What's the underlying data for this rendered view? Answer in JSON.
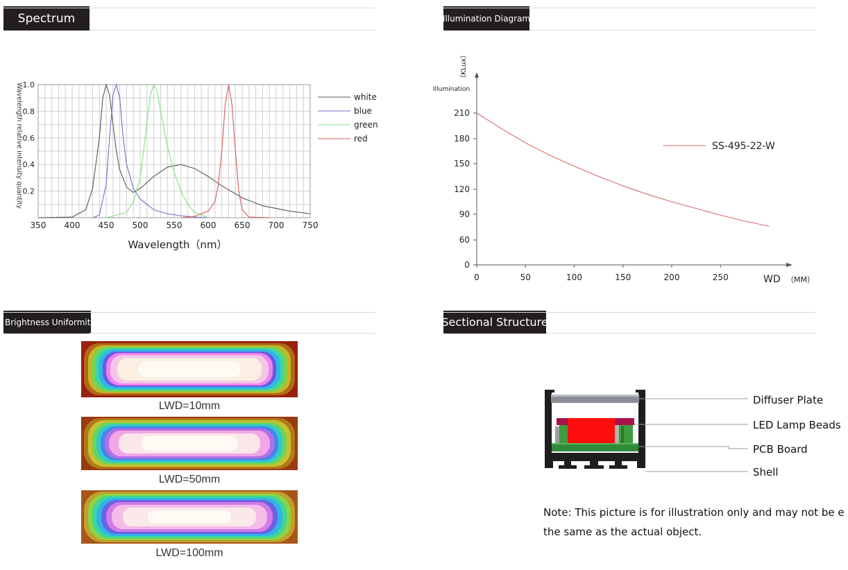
{
  "sections": {
    "spectrum": "Spectrum",
    "illumination": "Illumination Diagram",
    "brightness": "Brightness Uniformity",
    "sectional": "Sectional Structure"
  },
  "chart_data": [
    {
      "type": "line",
      "title": "Spectrum",
      "xlabel": "Wavelength（nm）",
      "ylabel": "Wavelength relative intensity quantity",
      "xlim": [
        350,
        750
      ],
      "ylim": [
        0,
        1.0
      ],
      "x_ticks": [
        "350",
        "400",
        "450",
        "500",
        "550",
        "600",
        "650",
        "700",
        "750"
      ],
      "y_ticks": [
        "1.0",
        "0.8",
        "0.6",
        "0.4",
        "0.2"
      ],
      "grid": true,
      "legend_position": "right",
      "series": [
        {
          "name": "white",
          "color": "#555555",
          "x": [
            350,
            400,
            420,
            430,
            440,
            445,
            450,
            455,
            460,
            465,
            470,
            480,
            490,
            500,
            520,
            540,
            560,
            580,
            600,
            620,
            650,
            680,
            720,
            750
          ],
          "y": [
            0,
            0.005,
            0.06,
            0.22,
            0.6,
            0.9,
            1.0,
            0.92,
            0.7,
            0.5,
            0.36,
            0.23,
            0.19,
            0.22,
            0.31,
            0.38,
            0.4,
            0.37,
            0.31,
            0.24,
            0.15,
            0.09,
            0.05,
            0.03
          ]
        },
        {
          "name": "blue",
          "color": "#6f6fc6",
          "x": [
            430,
            440,
            450,
            455,
            460,
            465,
            470,
            475,
            480,
            490,
            500,
            520,
            540,
            560,
            580,
            600
          ],
          "y": [
            0,
            0.02,
            0.25,
            0.6,
            0.92,
            1.0,
            0.9,
            0.6,
            0.4,
            0.22,
            0.14,
            0.06,
            0.03,
            0.015,
            0.005,
            0
          ]
        },
        {
          "name": "green",
          "color": "#84e084",
          "x": [
            450,
            480,
            490,
            500,
            505,
            510,
            515,
            520,
            525,
            530,
            540,
            550,
            560,
            570,
            580,
            600
          ],
          "y": [
            0,
            0.04,
            0.12,
            0.3,
            0.5,
            0.72,
            0.92,
            1.0,
            0.95,
            0.8,
            0.54,
            0.34,
            0.2,
            0.1,
            0.04,
            0
          ]
        },
        {
          "name": "red",
          "color": "#d45a5a",
          "x": [
            560,
            580,
            600,
            610,
            615,
            620,
            625,
            630,
            635,
            640,
            645,
            650,
            660,
            690
          ],
          "y": [
            0,
            0.01,
            0.05,
            0.12,
            0.25,
            0.5,
            0.85,
            1.0,
            0.85,
            0.5,
            0.2,
            0.06,
            0.005,
            0
          ]
        }
      ]
    },
    {
      "type": "line",
      "title": "Illumination Diagram",
      "xlabel": "WD",
      "xunit": "（MM）",
      "ylabel": "Illumination",
      "yunit": "（KLux）",
      "xlim": [
        0,
        320
      ],
      "ylim": [
        0,
        240
      ],
      "x_ticks": [
        "0",
        "50",
        "100",
        "150",
        "200",
        "250"
      ],
      "y_ticks": [
        "0",
        "60",
        "90",
        "120",
        "150",
        "180",
        "210"
      ],
      "grid": false,
      "legend_position": "right",
      "series": [
        {
          "name": "SS-495-22-W",
          "color": "#d86b6b",
          "x": [
            0,
            25,
            50,
            75,
            100,
            125,
            150,
            175,
            200,
            225,
            250,
            275,
            300
          ],
          "y": [
            210,
            192,
            175,
            160,
            147,
            135,
            124,
            114,
            105,
            97,
            89,
            82,
            76
          ]
        }
      ]
    }
  ],
  "brightness": {
    "captions": [
      "LWD=10mm",
      "LWD=50mm",
      "LWD=100mm"
    ]
  },
  "structure": {
    "labels": [
      "Diffuser Plate",
      "LED Lamp Beads",
      "PCB Board",
      "Shell"
    ],
    "note_line1": "Note: This picture is for illustration only and may not be e",
    "note_line2": "the same as the actual object."
  }
}
